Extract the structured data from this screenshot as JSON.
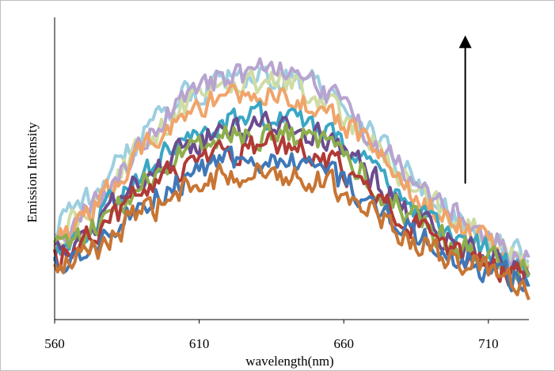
{
  "chart_data": {
    "type": "line",
    "title": "",
    "xlabel": "wavelength(nm)",
    "ylabel": "Emission Intensity",
    "xlim": [
      560,
      724
    ],
    "ylim": [
      0,
      1
    ],
    "xticks": [
      560,
      610,
      660,
      710
    ],
    "grid": false,
    "legend": "none",
    "y_tick_labels": false,
    "annotations": [
      {
        "kind": "arrow",
        "direction": "up",
        "meaning": "increasing intensity across spectra",
        "x_data": 702,
        "y_from": 0.45,
        "y_to": 0.93
      }
    ],
    "series": [
      {
        "color": "#c87533",
        "x_start": 560,
        "x_end": 724,
        "points": [
          [
            560,
            0.16
          ],
          [
            575,
            0.24
          ],
          [
            590,
            0.35
          ],
          [
            605,
            0.42
          ],
          [
            620,
            0.48
          ],
          [
            635,
            0.49
          ],
          [
            650,
            0.47
          ],
          [
            665,
            0.4
          ],
          [
            680,
            0.28
          ],
          [
            695,
            0.21
          ],
          [
            710,
            0.16
          ],
          [
            724,
            0.08
          ]
        ]
      },
      {
        "color": "#3f78b8",
        "x_start": 560,
        "x_end": 724,
        "points": [
          [
            560,
            0.18
          ],
          [
            575,
            0.26
          ],
          [
            590,
            0.39
          ],
          [
            605,
            0.46
          ],
          [
            620,
            0.52
          ],
          [
            635,
            0.53
          ],
          [
            650,
            0.5
          ],
          [
            665,
            0.43
          ],
          [
            680,
            0.31
          ],
          [
            695,
            0.22
          ],
          [
            710,
            0.16
          ],
          [
            724,
            0.12
          ]
        ]
      },
      {
        "color": "#b03a35",
        "x_start": 560,
        "x_end": 724,
        "points": [
          [
            560,
            0.2
          ],
          [
            575,
            0.29
          ],
          [
            590,
            0.42
          ],
          [
            605,
            0.51
          ],
          [
            620,
            0.56
          ],
          [
            635,
            0.57
          ],
          [
            650,
            0.55
          ],
          [
            665,
            0.46
          ],
          [
            680,
            0.33
          ],
          [
            695,
            0.24
          ],
          [
            710,
            0.18
          ],
          [
            724,
            0.14
          ]
        ]
      },
      {
        "color": "#8eae4e",
        "x_start": 560,
        "x_end": 724,
        "points": [
          [
            560,
            0.22
          ],
          [
            575,
            0.31
          ],
          [
            590,
            0.45
          ],
          [
            605,
            0.55
          ],
          [
            620,
            0.6
          ],
          [
            635,
            0.62
          ],
          [
            650,
            0.59
          ],
          [
            665,
            0.5
          ],
          [
            680,
            0.36
          ],
          [
            695,
            0.27
          ],
          [
            710,
            0.2
          ],
          [
            724,
            0.15
          ]
        ]
      },
      {
        "color": "#6b4c8e",
        "x_start": 560,
        "x_end": 724,
        "points": [
          [
            560,
            0.21
          ],
          [
            575,
            0.32
          ],
          [
            590,
            0.46
          ],
          [
            605,
            0.57
          ],
          [
            620,
            0.63
          ],
          [
            635,
            0.64
          ],
          [
            650,
            0.61
          ],
          [
            665,
            0.52
          ],
          [
            680,
            0.37
          ],
          [
            695,
            0.27
          ],
          [
            710,
            0.2
          ],
          [
            724,
            0.15
          ]
        ]
      },
      {
        "color": "#3aa7c4",
        "x_start": 560,
        "x_end": 724,
        "points": [
          [
            560,
            0.23
          ],
          [
            575,
            0.34
          ],
          [
            590,
            0.49
          ],
          [
            605,
            0.6
          ],
          [
            620,
            0.66
          ],
          [
            635,
            0.67
          ],
          [
            650,
            0.64
          ],
          [
            665,
            0.55
          ],
          [
            680,
            0.4
          ],
          [
            695,
            0.29
          ],
          [
            710,
            0.22
          ],
          [
            724,
            0.16
          ]
        ]
      },
      {
        "color": "#f0a46a",
        "x_start": 560,
        "x_end": 724,
        "points": [
          [
            560,
            0.26
          ],
          [
            575,
            0.38
          ],
          [
            590,
            0.55
          ],
          [
            605,
            0.67
          ],
          [
            620,
            0.74
          ],
          [
            635,
            0.74
          ],
          [
            650,
            0.71
          ],
          [
            665,
            0.61
          ],
          [
            680,
            0.45
          ],
          [
            695,
            0.33
          ],
          [
            710,
            0.25
          ],
          [
            724,
            0.18
          ]
        ]
      },
      {
        "color": "#b7a4cf",
        "x_start": 560,
        "x_end": 724,
        "points": [
          [
            560,
            0.27
          ],
          [
            575,
            0.4
          ],
          [
            590,
            0.58
          ],
          [
            605,
            0.74
          ],
          [
            620,
            0.81
          ],
          [
            635,
            0.83
          ],
          [
            650,
            0.78
          ],
          [
            665,
            0.66
          ],
          [
            680,
            0.5
          ],
          [
            695,
            0.37
          ],
          [
            710,
            0.27
          ],
          [
            724,
            0.2
          ]
        ]
      },
      {
        "color": "#cfdca4",
        "x_start": 560,
        "x_end": 724,
        "points": [
          [
            560,
            0.26
          ],
          [
            575,
            0.4
          ],
          [
            590,
            0.57
          ],
          [
            605,
            0.71
          ],
          [
            620,
            0.78
          ],
          [
            635,
            0.79
          ],
          [
            650,
            0.75
          ],
          [
            665,
            0.64
          ],
          [
            680,
            0.48
          ],
          [
            695,
            0.35
          ],
          [
            710,
            0.26
          ],
          [
            724,
            0.19
          ]
        ]
      },
      {
        "color": "#9ccfe0",
        "x_start": 560,
        "x_end": 724,
        "points": [
          [
            560,
            0.3
          ],
          [
            575,
            0.43
          ],
          [
            590,
            0.61
          ],
          [
            605,
            0.74
          ],
          [
            620,
            0.8
          ],
          [
            635,
            0.81
          ],
          [
            650,
            0.78
          ],
          [
            665,
            0.66
          ],
          [
            680,
            0.5
          ],
          [
            695,
            0.36
          ],
          [
            710,
            0.27
          ],
          [
            724,
            0.19
          ]
        ]
      }
    ]
  }
}
